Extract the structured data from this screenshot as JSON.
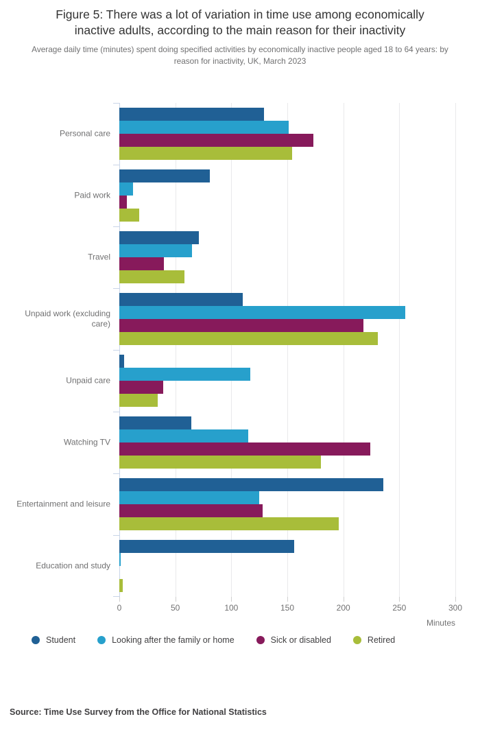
{
  "header": {
    "title": "Figure 5: There was a lot of variation in time use among economically inactive adults, according to the main reason for their inactivity",
    "subtitle": "Average daily time (minutes) spent doing specified activities by economically inactive people aged 18 to 64 years: by reason for inactivity, UK, March 2023"
  },
  "chart_data": {
    "type": "bar",
    "orientation": "horizontal",
    "title": "Figure 5: There was a lot of variation in time use among economically inactive adults, according to the main reason for their inactivity",
    "subtitle": "Average daily time (minutes) spent doing specified activities by economically inactive people aged 18 to 64 years: by reason for inactivity, UK, March 2023",
    "xlabel": "Minutes",
    "ylabel": "",
    "xlim": [
      0,
      300
    ],
    "xticks": [
      0,
      50,
      100,
      150,
      200,
      250,
      300
    ],
    "grid": true,
    "legend_position": "bottom",
    "categories": [
      "Personal care",
      "Paid work",
      "Travel",
      "Unpaid work (excluding care)",
      "Unpaid care",
      "Watching TV",
      "Entertainment and leisure",
      "Education and study"
    ],
    "series": [
      {
        "name": "Student",
        "color": "#206095",
        "values": [
          129,
          81,
          71,
          110,
          4,
          64,
          236,
          156
        ]
      },
      {
        "name": "Looking after the family or home",
        "color": "#27a0cc",
        "values": [
          151,
          12,
          65,
          255,
          117,
          115,
          125,
          1
        ]
      },
      {
        "name": "Sick or disabled",
        "color": "#871a5b",
        "values": [
          173,
          7,
          40,
          218,
          39,
          224,
          128,
          0
        ]
      },
      {
        "name": "Retired",
        "color": "#a8bd3a",
        "values": [
          154,
          18,
          58,
          231,
          34,
          180,
          196,
          3
        ]
      }
    ]
  },
  "footer": {
    "source": "Source: Time Use Survey from the Office for National Statistics"
  }
}
